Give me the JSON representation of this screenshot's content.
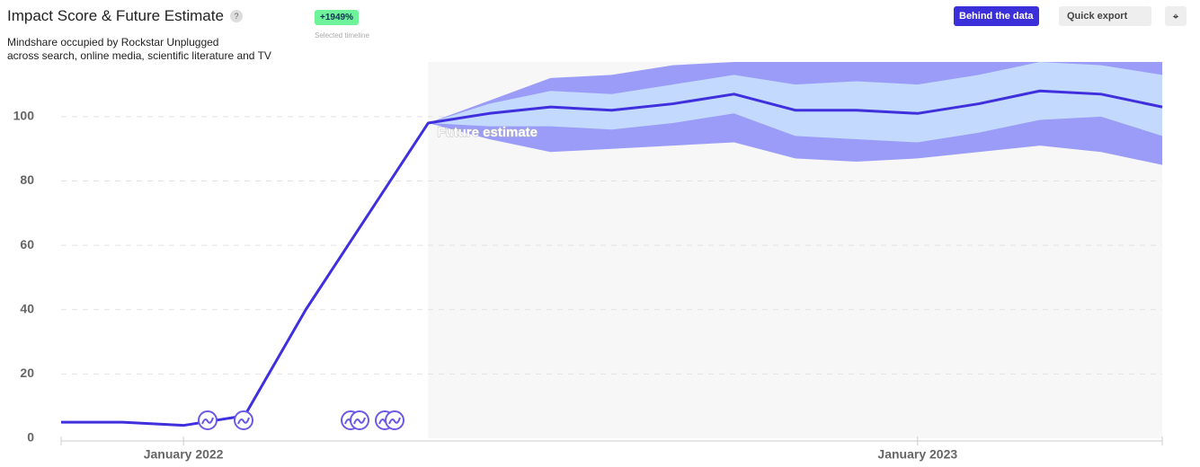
{
  "chart_data": {
    "type": "line",
    "title": "Impact Score & Future Estimate",
    "help": "?",
    "subtitle_lines": [
      "Mindshare occupied by Rockstar Unplugged",
      "across search, online media, scientific literature and TV"
    ],
    "badge": "+1949%",
    "badge_caption": "Selected timeline",
    "buttons": [
      "Behind the data",
      "Quick export"
    ],
    "annotation": {
      "x": "2022-05",
      "text": "Future estimate"
    },
    "x": [
      "2021-11",
      "2021-12",
      "2022-01",
      "2022-02",
      "2022-03",
      "2022-04",
      "2022-05",
      "2022-06",
      "2022-07",
      "2022-08",
      "2022-09",
      "2022-10",
      "2022-11",
      "2022-12",
      "2023-01",
      "2023-02",
      "2023-03",
      "2023-04",
      "2023-05"
    ],
    "xlim": [
      "2021-11",
      "2023-05"
    ],
    "xticks": [
      {
        "value": "2022-01",
        "label": "January 2022"
      },
      {
        "value": "2023-01",
        "label": "January 2023"
      }
    ],
    "ylim": [
      0,
      117
    ],
    "yticks": [
      0,
      20,
      40,
      60,
      80,
      100
    ],
    "grid": true,
    "series": [
      {
        "color": "#3f2fdc",
        "values": [
          5,
          5,
          4,
          7,
          40,
          69,
          98,
          101,
          103,
          102,
          104,
          107,
          102,
          102,
          101,
          104,
          108,
          107,
          103
        ]
      }
    ],
    "bands": [
      {
        "color": "#9b9cf8",
        "lower": [
          null,
          null,
          null,
          null,
          null,
          null,
          98,
          93,
          89,
          90,
          91,
          92,
          87,
          86,
          87,
          89,
          91,
          89,
          85
        ],
        "upper": [
          null,
          null,
          null,
          null,
          null,
          null,
          98,
          105,
          112,
          113,
          116,
          117,
          117,
          117,
          117,
          117,
          117,
          117,
          117
        ]
      },
      {
        "color": "#c3d9fd",
        "lower": [
          null,
          null,
          null,
          null,
          null,
          null,
          98,
          97,
          97,
          96,
          98,
          101,
          94,
          93,
          92,
          95,
          99,
          100,
          94
        ],
        "upper": [
          null,
          null,
          null,
          null,
          null,
          null,
          98,
          104,
          108,
          107,
          110,
          113,
          110,
          111,
          110,
          113,
          117,
          116,
          113
        ]
      }
    ]
  }
}
